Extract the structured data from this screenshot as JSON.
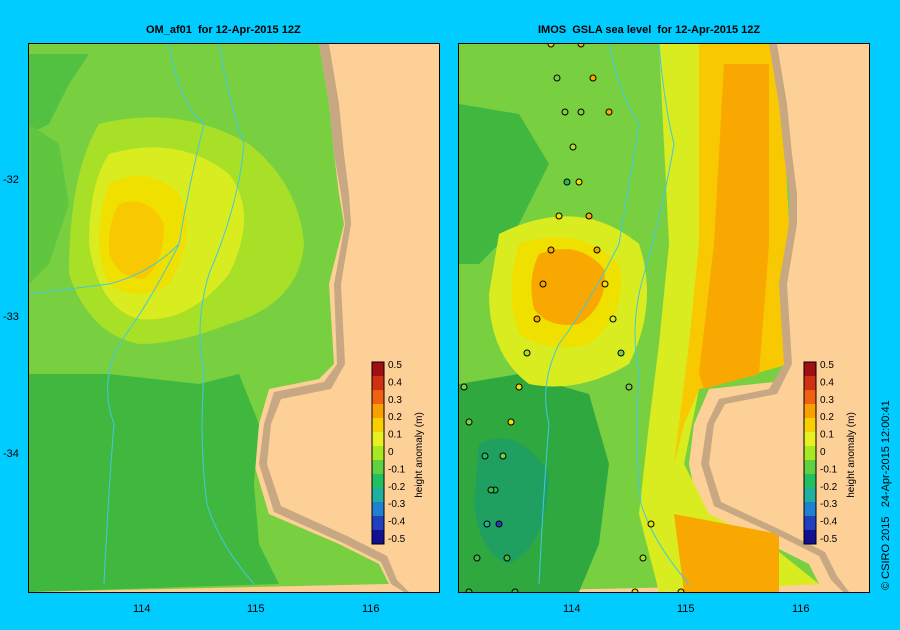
{
  "left_panel": {
    "title": "OM_af01  for 12-Apr-2015 12Z"
  },
  "right_panel": {
    "title": "IMOS  GSLA sea level  for 12-Apr-2015 12Z"
  },
  "axes": {
    "lat_ticks": [
      "-32",
      "-33",
      "-34"
    ],
    "lon_ticks": [
      "114",
      "115",
      "116"
    ]
  },
  "colorbar": {
    "label": "height anomaly (m)",
    "ticks": [
      "0.5",
      "0.4",
      "0.3",
      "0.2",
      "0.1",
      "0",
      "-0.1",
      "-0.2",
      "-0.3",
      "-0.4",
      "-0.5"
    ],
    "colors": [
      "#a01010",
      "#d03010",
      "#f06010",
      "#f8a000",
      "#f8d000",
      "#e8f020",
      "#a8e820",
      "#60d040",
      "#20c060",
      "#20b0a0",
      "#2080d0",
      "#2040c0",
      "#101090"
    ]
  },
  "copyright": "© CSIRO 2015   24-Apr-2015 12:00:41",
  "colors": {
    "background": "#00ccff",
    "land": "#fdd098",
    "shelf": "#c8a882"
  }
}
